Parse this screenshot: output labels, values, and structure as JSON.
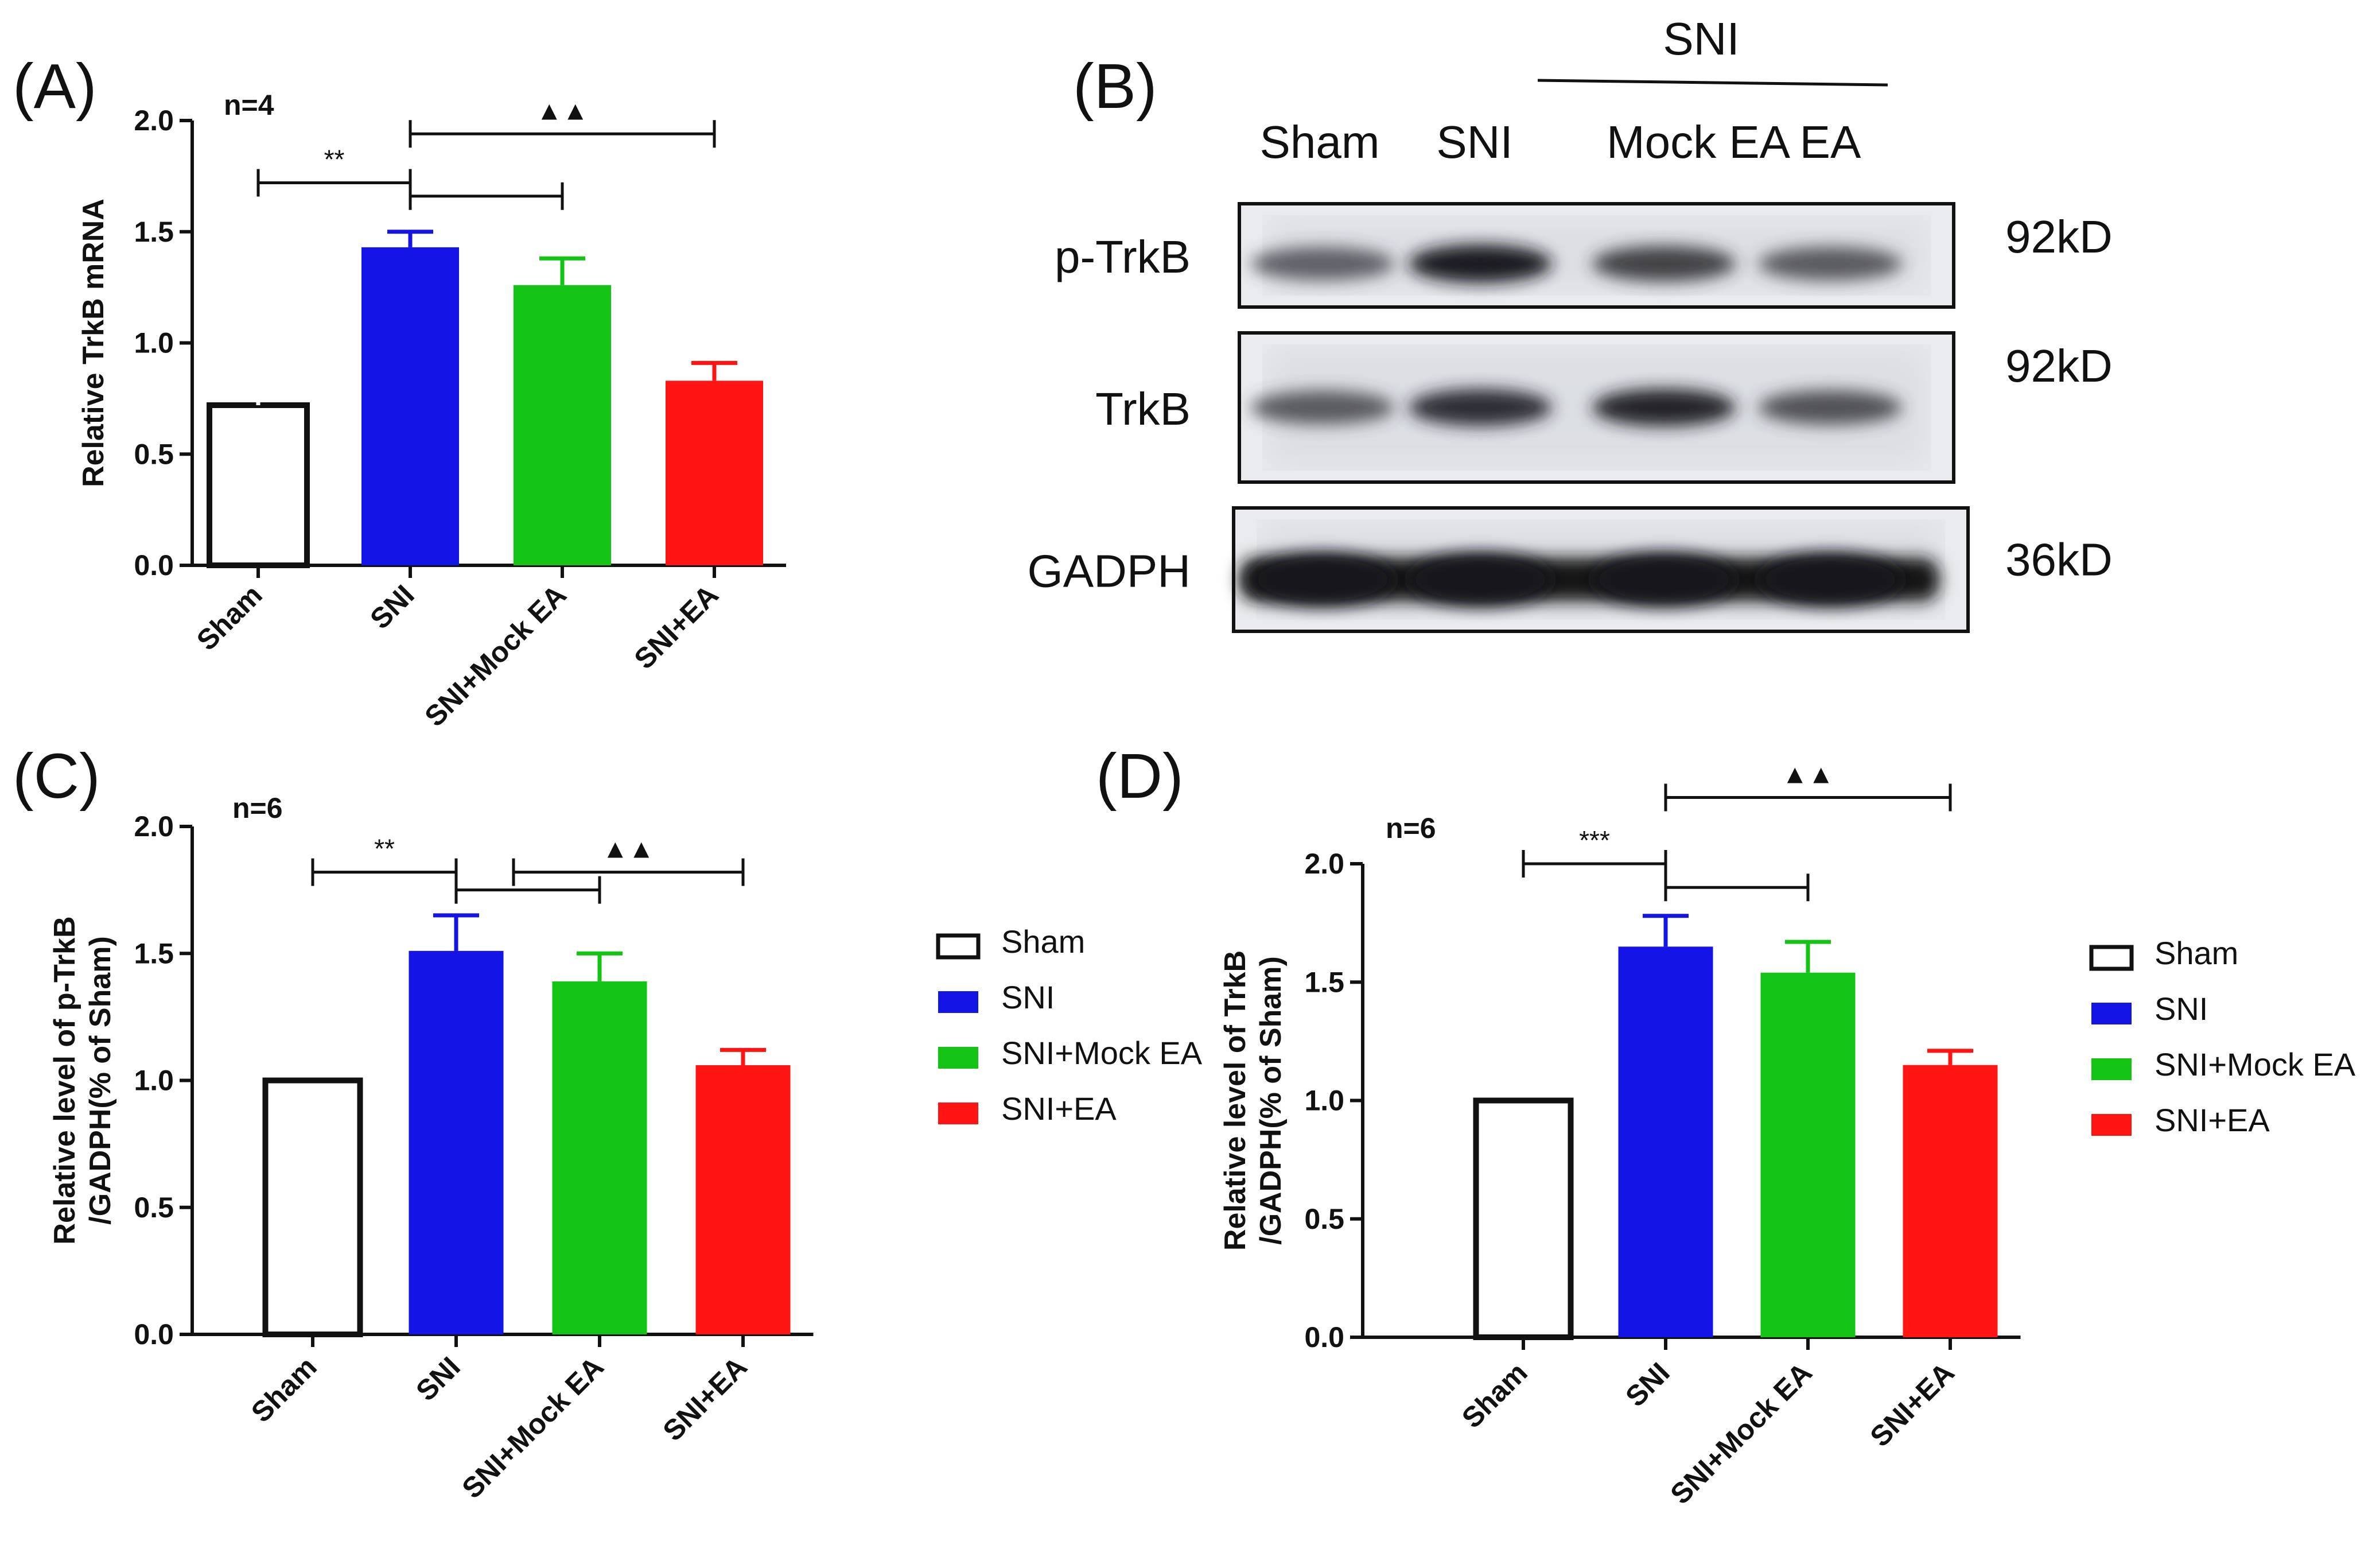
{
  "chart_data": [
    {
      "panel": "(A)",
      "type": "bar",
      "n_label": "n=4",
      "ylabel": "Relative TrkB mRNA",
      "ylim": [
        0,
        2.0
      ],
      "yticks": [
        "0.0",
        "0.5",
        "1.0",
        "1.5",
        "2.0"
      ],
      "categories": [
        "Sham",
        "SNI",
        "SNI+Mock EA",
        "SNI+EA"
      ],
      "values": [
        0.72,
        1.43,
        1.26,
        0.83
      ],
      "errors": [
        0.15,
        0.07,
        0.12,
        0.08
      ],
      "colors": [
        "#ffffff",
        "#1414e6",
        "#14c414",
        "#ff1414"
      ],
      "annotations": [
        {
          "from": 0,
          "to": 1,
          "level": 1.72,
          "label": "**"
        },
        {
          "from": 1,
          "to": 3,
          "level": 1.94,
          "label": "▲▲"
        },
        {
          "from": 1,
          "to": 2,
          "level": 1.66,
          "label": ""
        }
      ]
    },
    {
      "panel": "(C)",
      "type": "bar",
      "n_label": "n=6",
      "ylabel_lines": [
        "Relative level of p-TrkB",
        "/GADPH(% of Sham)"
      ],
      "ylim": [
        0,
        2.0
      ],
      "yticks": [
        "0.0",
        "0.5",
        "1.0",
        "1.5",
        "2.0"
      ],
      "categories": [
        "Sham",
        "SNI",
        "SNI+Mock EA",
        "SNI+EA"
      ],
      "values": [
        1.0,
        1.51,
        1.39,
        1.06
      ],
      "errors": [
        0,
        0.14,
        0.11,
        0.06
      ],
      "colors": [
        "#ffffff",
        "#1414e6",
        "#14c414",
        "#ff1414"
      ],
      "annotations": [
        {
          "from": 0,
          "to": 1,
          "level": 1.82,
          "label": "**"
        },
        {
          "from": 1.4,
          "to": 3.0,
          "level": 1.82,
          "label": "▲▲"
        },
        {
          "from": 1.0,
          "to": 2.0,
          "level": 1.75,
          "label": ""
        }
      ]
    },
    {
      "panel": "(D)",
      "type": "bar",
      "n_label": "n=6",
      "ylabel_lines": [
        "Relative level of TrkB",
        "/GADPH(% of Sham)"
      ],
      "ylim": [
        0,
        2.0
      ],
      "yticks": [
        "0.0",
        "0.5",
        "1.0",
        "1.5",
        "2.0"
      ],
      "categories": [
        "Sham",
        "SNI",
        "SNI+Mock EA",
        "SNI+EA"
      ],
      "values": [
        1.0,
        1.65,
        1.54,
        1.15
      ],
      "errors": [
        0,
        0.13,
        0.13,
        0.06
      ],
      "colors": [
        "#ffffff",
        "#1414e6",
        "#14c414",
        "#ff1414"
      ],
      "annotations": [
        {
          "from": 0,
          "to": 1,
          "level": 2.0,
          "label": "***"
        },
        {
          "from": 1,
          "to": 3,
          "level": 2.28,
          "label": "▲▲"
        },
        {
          "from": 1,
          "to": 2,
          "level": 1.9,
          "label": ""
        }
      ]
    }
  ],
  "legend": {
    "entries": [
      "Sham",
      "SNI",
      "SNI+Mock EA",
      "SNI+EA"
    ],
    "colors": [
      "#ffffff",
      "#1414e6",
      "#14c414",
      "#ff1414"
    ]
  },
  "blot": {
    "panel": "(B)",
    "group_label": "SNI",
    "lanes": [
      "Sham",
      "SNI",
      "Mock  EA",
      "EA"
    ],
    "rows": [
      {
        "name": "p-TrkB",
        "size": "92kD",
        "intensity": [
          0.55,
          0.95,
          0.75,
          0.6
        ]
      },
      {
        "name": "TrkB",
        "size": "92kD",
        "intensity": [
          0.6,
          0.85,
          0.9,
          0.65
        ]
      },
      {
        "name": "GADPH",
        "size": "36kD",
        "intensity": [
          1.0,
          1.0,
          1.0,
          1.0
        ]
      }
    ]
  }
}
